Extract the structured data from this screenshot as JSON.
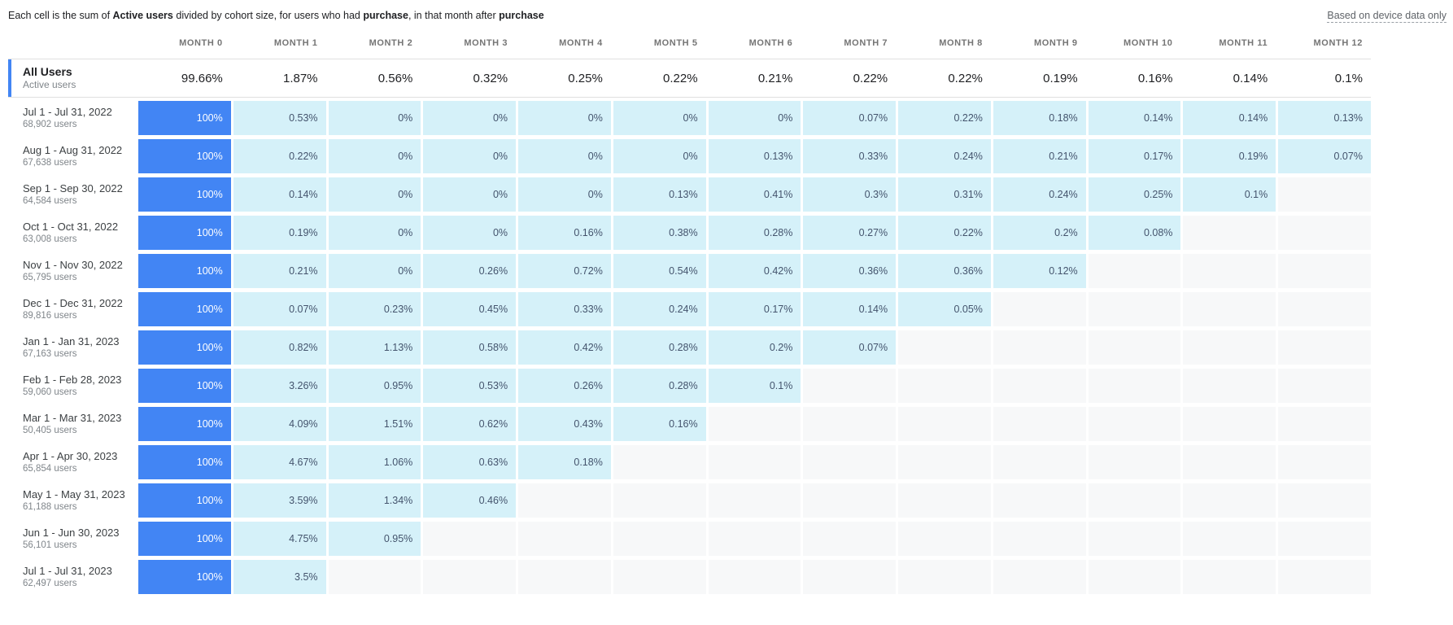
{
  "caption": {
    "parts": [
      {
        "text": "Each cell is the sum of ",
        "bold": false
      },
      {
        "text": "Active users",
        "bold": true
      },
      {
        "text": " divided by cohort size, for users who had ",
        "bold": false
      },
      {
        "text": "purchase",
        "bold": true
      },
      {
        "text": ", in that month after ",
        "bold": false
      },
      {
        "text": "purchase",
        "bold": true
      }
    ]
  },
  "device_note": "Based on device data only",
  "columns": [
    "MONTH 0",
    "MONTH 1",
    "MONTH 2",
    "MONTH 3",
    "MONTH 4",
    "MONTH 5",
    "MONTH 6",
    "MONTH 7",
    "MONTH 8",
    "MONTH 9",
    "MONTH 10",
    "MONTH 11",
    "MONTH 12"
  ],
  "summary_row": {
    "title": "All Users",
    "subtitle": "Active users",
    "values": [
      "99.66%",
      "1.87%",
      "0.56%",
      "0.32%",
      "0.25%",
      "0.22%",
      "0.21%",
      "0.22%",
      "0.22%",
      "0.19%",
      "0.16%",
      "0.14%",
      "0.1%"
    ]
  },
  "rows": [
    {
      "date_range": "Jul 1 - Jul 31, 2022",
      "users": "68,902 users",
      "values": [
        "100%",
        "0.53%",
        "0%",
        "0%",
        "0%",
        "0%",
        "0%",
        "0.07%",
        "0.22%",
        "0.18%",
        "0.14%",
        "0.14%",
        "0.13%"
      ]
    },
    {
      "date_range": "Aug 1 - Aug 31, 2022",
      "users": "67,638 users",
      "values": [
        "100%",
        "0.22%",
        "0%",
        "0%",
        "0%",
        "0%",
        "0.13%",
        "0.33%",
        "0.24%",
        "0.21%",
        "0.17%",
        "0.19%",
        "0.07%"
      ]
    },
    {
      "date_range": "Sep 1 - Sep 30, 2022",
      "users": "64,584 users",
      "values": [
        "100%",
        "0.14%",
        "0%",
        "0%",
        "0%",
        "0.13%",
        "0.41%",
        "0.3%",
        "0.31%",
        "0.24%",
        "0.25%",
        "0.1%",
        null
      ]
    },
    {
      "date_range": "Oct 1 - Oct 31, 2022",
      "users": "63,008 users",
      "values": [
        "100%",
        "0.19%",
        "0%",
        "0%",
        "0.16%",
        "0.38%",
        "0.28%",
        "0.27%",
        "0.22%",
        "0.2%",
        "0.08%",
        null,
        null
      ]
    },
    {
      "date_range": "Nov 1 - Nov 30, 2022",
      "users": "65,795 users",
      "values": [
        "100%",
        "0.21%",
        "0%",
        "0.26%",
        "0.72%",
        "0.54%",
        "0.42%",
        "0.36%",
        "0.36%",
        "0.12%",
        null,
        null,
        null
      ]
    },
    {
      "date_range": "Dec 1 - Dec 31, 2022",
      "users": "89,816 users",
      "values": [
        "100%",
        "0.07%",
        "0.23%",
        "0.45%",
        "0.33%",
        "0.24%",
        "0.17%",
        "0.14%",
        "0.05%",
        null,
        null,
        null,
        null
      ]
    },
    {
      "date_range": "Jan 1 - Jan 31, 2023",
      "users": "67,163 users",
      "values": [
        "100%",
        "0.82%",
        "1.13%",
        "0.58%",
        "0.42%",
        "0.28%",
        "0.2%",
        "0.07%",
        null,
        null,
        null,
        null,
        null
      ]
    },
    {
      "date_range": "Feb 1 - Feb 28, 2023",
      "users": "59,060 users",
      "values": [
        "100%",
        "3.26%",
        "0.95%",
        "0.53%",
        "0.26%",
        "0.28%",
        "0.1%",
        null,
        null,
        null,
        null,
        null,
        null
      ]
    },
    {
      "date_range": "Mar 1 - Mar 31, 2023",
      "users": "50,405 users",
      "values": [
        "100%",
        "4.09%",
        "1.51%",
        "0.62%",
        "0.43%",
        "0.16%",
        null,
        null,
        null,
        null,
        null,
        null,
        null
      ]
    },
    {
      "date_range": "Apr 1 - Apr 30, 2023",
      "users": "65,854 users",
      "values": [
        "100%",
        "4.67%",
        "1.06%",
        "0.63%",
        "0.18%",
        null,
        null,
        null,
        null,
        null,
        null,
        null,
        null
      ]
    },
    {
      "date_range": "May 1 - May 31, 2023",
      "users": "61,188 users",
      "values": [
        "100%",
        "3.59%",
        "1.34%",
        "0.46%",
        null,
        null,
        null,
        null,
        null,
        null,
        null,
        null,
        null
      ]
    },
    {
      "date_range": "Jun 1 - Jun 30, 2023",
      "users": "56,101 users",
      "values": [
        "100%",
        "4.75%",
        "0.95%",
        null,
        null,
        null,
        null,
        null,
        null,
        null,
        null,
        null,
        null
      ]
    },
    {
      "date_range": "Jul 1 - Jul 31, 2023",
      "users": "62,497 users",
      "values": [
        "100%",
        "3.5%",
        null,
        null,
        null,
        null,
        null,
        null,
        null,
        null,
        null,
        null,
        null
      ]
    }
  ],
  "colors": {
    "month0_cell": "#4285f4",
    "value_cell": "#d5f1f9",
    "empty_cell": "#f7f8f9",
    "accent_bar": "#4285f4",
    "value_text": "#44546d",
    "muted_text": "#80868b"
  }
}
